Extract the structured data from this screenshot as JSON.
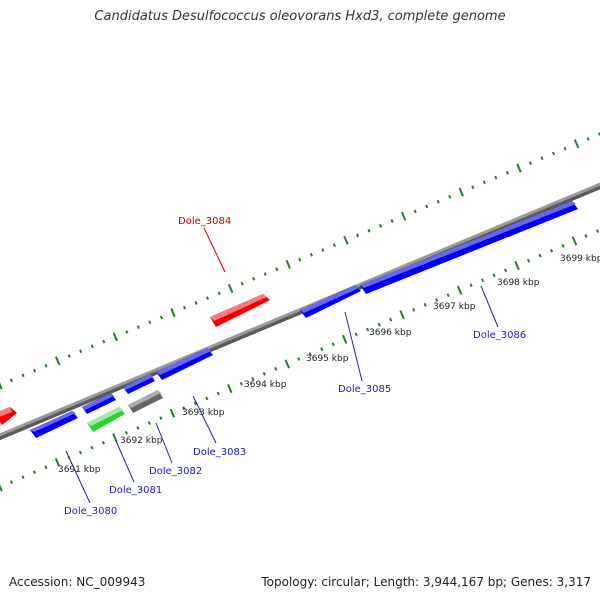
{
  "title": "Candidatus Desulfococcus oleovorans Hxd3, complete genome",
  "footer": {
    "accession": "Accession: NC_009943",
    "summary": "Topology: circular; Length: 3,944,167 bp; Genes: 3,317"
  },
  "colors": {
    "backbone": "#888888",
    "ticks": "#2a7a2a",
    "forward_gene": "#0000ee",
    "highlight_gene": "#ee0000",
    "rna_gene": "#33cc33",
    "pseudo_gene": "#666666",
    "label_blue": "#2222aa",
    "label_red": "#cc0000"
  },
  "scale_labels": [
    "3691 kbp",
    "3692 kbp",
    "3693 kbp",
    "3694 kbp",
    "3695 kbp",
    "3696 kbp",
    "3697 kbp",
    "3698 kbp",
    "3699 kbp"
  ],
  "genes": [
    {
      "name": "Dole_3080",
      "color": "#2222aa"
    },
    {
      "name": "Dole_3081",
      "color": "#2222aa"
    },
    {
      "name": "Dole_3082",
      "color": "#2222aa"
    },
    {
      "name": "Dole_3083",
      "color": "#2222aa"
    },
    {
      "name": "Dole_3084",
      "color": "#cc0000"
    },
    {
      "name": "Dole_3085",
      "color": "#2222aa"
    },
    {
      "name": "Dole_3086",
      "color": "#2222aa"
    }
  ]
}
